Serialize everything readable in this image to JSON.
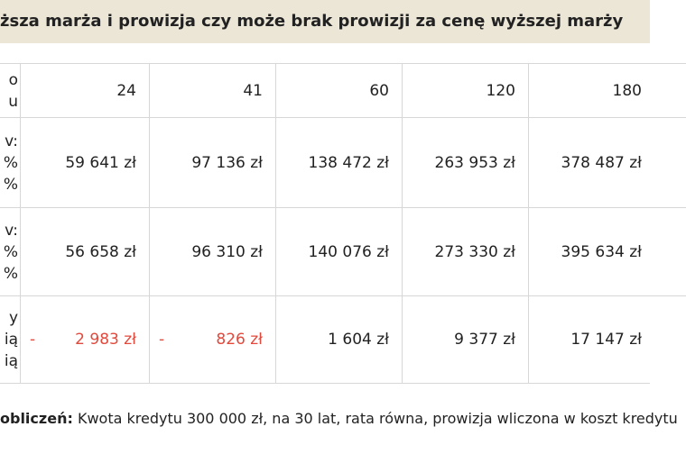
{
  "title": "ższa marża i prowizja czy może brak prowizji za cenę wyższej marży",
  "table": {
    "negative_color": "#e2483b",
    "rows": [
      {
        "label": [
          "o",
          "u"
        ],
        "cells": [
          "24",
          "41",
          "60",
          "120",
          "180"
        ]
      },
      {
        "label": [
          "v:",
          "%",
          "%"
        ],
        "cells": [
          "59 641 zł",
          "97 136 zł",
          "138 472 zł",
          "263 953 zł",
          "378 487 zł"
        ]
      },
      {
        "label": [
          "v:",
          "%",
          "%"
        ],
        "cells": [
          "56 658 zł",
          "96 310 zł",
          "140 076 zł",
          "273 330 zł",
          "395 634 zł"
        ]
      },
      {
        "label": [
          "y",
          "ią",
          "ią"
        ],
        "cells": [
          {
            "sign": "-",
            "text": "2 983 zł"
          },
          {
            "sign": "-",
            "text": "826 zł"
          },
          "1 604 zł",
          "9 377 zł",
          "17 147 zł"
        ]
      }
    ]
  },
  "footer": {
    "bold": "obliczeń:",
    "text": " Kwota kredytu 300 000 zł, na 30 lat, rata równa, prowizja wliczona w koszt kredytu"
  }
}
